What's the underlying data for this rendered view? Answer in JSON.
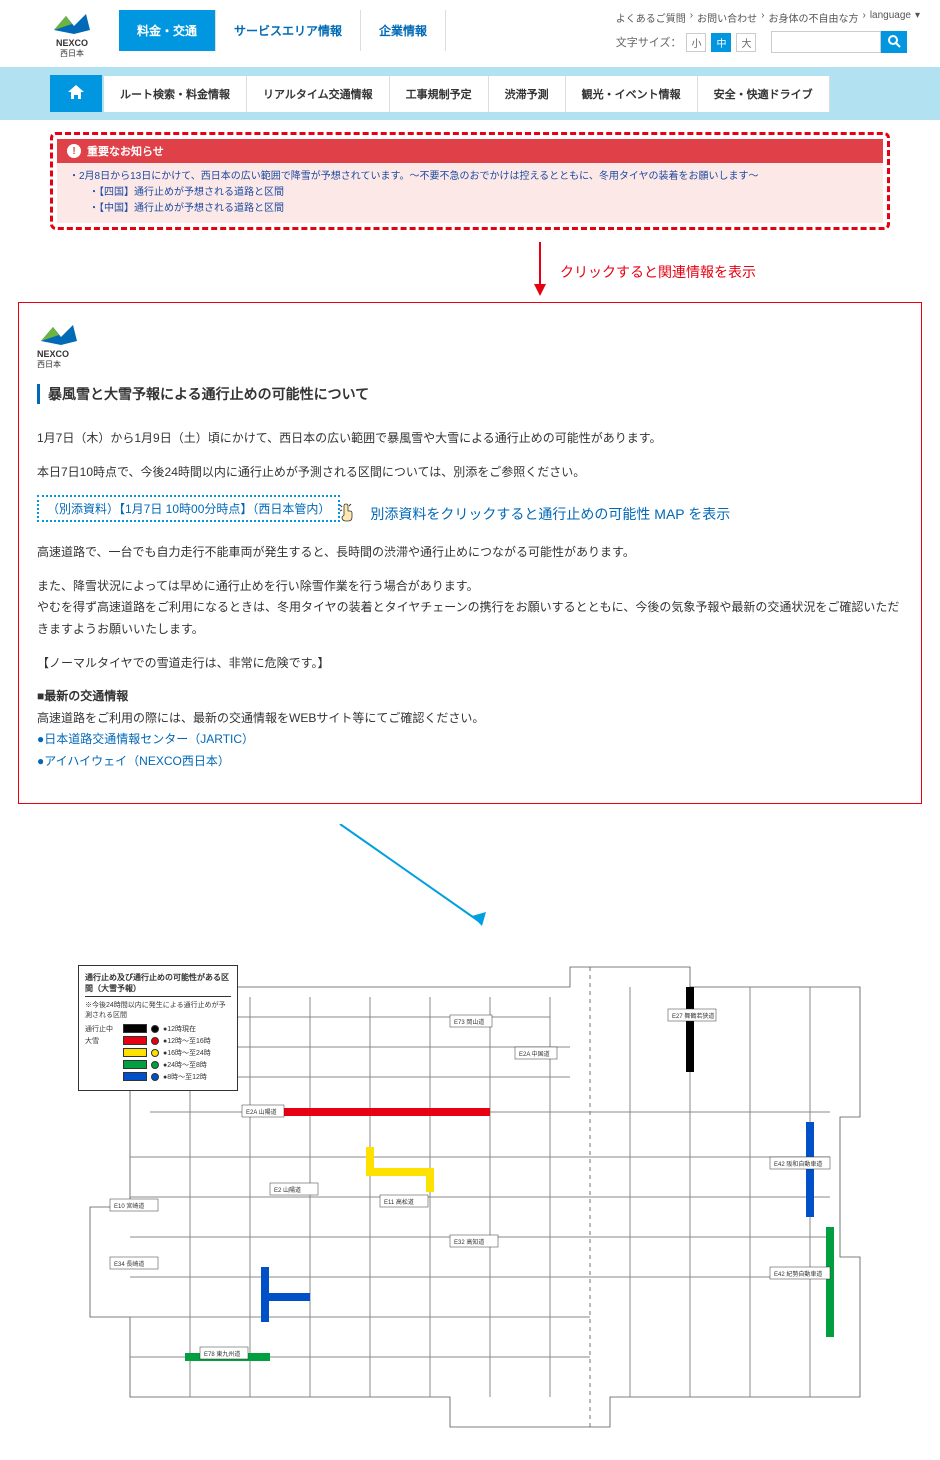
{
  "logo": {
    "name": "NEXCO",
    "sub": "西日本"
  },
  "header_tabs": [
    "料金・交通",
    "サービスエリア情報",
    "企業情報"
  ],
  "top_links": [
    "よくあるご質問",
    "お問い合わせ",
    "お身体の不自由な方",
    "language"
  ],
  "font_label": "文字サイズ：",
  "font_sizes": [
    "小",
    "中",
    "大"
  ],
  "nav": [
    "ルート検索・料金情報",
    "リアルタイム交通情報",
    "工事規制予定",
    "渋滞予測",
    "観光・イベント情報",
    "安全・快適ドライブ"
  ],
  "alert": {
    "header": "重要なお知らせ",
    "line1": "・2月8日から13日にかけて、西日本の広い範囲で降雪が予想されています。～不要不急のおでかけは控えるとともに、冬用タイヤの装着をお願いします～",
    "line2": "・【四国】通行止めが予想される道路と区間",
    "line3": "・【中国】通行止めが予想される道路と区間"
  },
  "annotation1": "クリックすると関連情報を表示",
  "detail": {
    "title": "暴風雪と大雪予報による通行止めの可能性について",
    "p1": "1月7日（木）から1月9日（土）頃にかけて、西日本の広い範囲で暴風雪や大雪による通行止めの可能性があります。",
    "p2": "本日7日10時点で、今後24時間以内に通行止めが予測される区間については、別添をご参照ください。",
    "attach": "（別添資料）【1月7日 10時00分時点】（西日本管内）",
    "p3": "高速道路で、一台でも自力走行不能車両が発生すると、長時間の渋滞や通行止めにつながる可能性があります。",
    "p4a": "また、降雪状況によっては早めに通行止めを行い除雪作業を行う場合があります。",
    "p4b": "やむを得ず高速道路をご利用になるときは、冬用タイヤの装着とタイヤチェーンの携行をお願いするとともに、今後の気象予報や最新の交通状況をご確認いただきますようお願いいたします。",
    "p5": "【ノーマルタイヤでの雪道走行は、非常に危険です。】",
    "sec": "■最新の交通情報",
    "p6": "高速道路をご利用の際には、最新の交通情報をWEBサイト等にてご確認ください。",
    "link1": "●日本道路交通情報センター（JARTIC）",
    "link2": "●アイハイウェイ（NEXCO西日本）"
  },
  "annotation2": "別添資料をクリックすると通行止めの可能性 MAP を表示",
  "map": {
    "legend_title": "通行止め及び通行止めの可能性がある区間（大雪予報）",
    "legend_sub": "※今後24時間以内に発生による通行止めが予測される区間",
    "rows": [
      {
        "label": "通行止中",
        "swatch": "#000000",
        "dot": "#000000",
        "time": "●12時現在"
      },
      {
        "label": "大雪",
        "swatch": "#e60012",
        "dot": "#e60012",
        "time": "●12時～至16時"
      },
      {
        "label": "",
        "swatch": "#ffe100",
        "dot": "#ffe100",
        "time": "●16時～至24時"
      },
      {
        "label": "",
        "swatch": "#00a040",
        "dot": "#00a040",
        "time": "●24時～至8時"
      },
      {
        "label": "",
        "swatch": "#0050c8",
        "dot": "#0050c8",
        "time": "●8時～至12時"
      }
    ],
    "colors": {
      "black": "#000000",
      "red": "#e60012",
      "yellow": "#ffe100",
      "green": "#00a040",
      "blue": "#0050c8",
      "line": "#555",
      "bg": "#ffffff"
    }
  }
}
